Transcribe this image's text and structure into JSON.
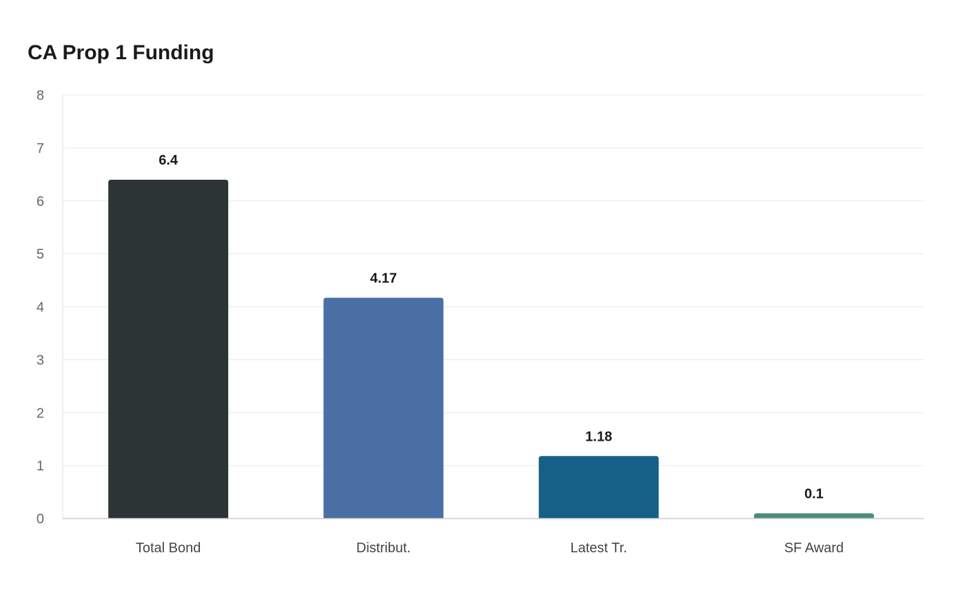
{
  "chart_data": {
    "type": "bar",
    "title": "CA Prop 1 Funding",
    "xlabel": "",
    "ylabel": "",
    "categories": [
      "Total Bond",
      "Distribut.",
      "Latest Tr.",
      "SF Award"
    ],
    "values": [
      6.4,
      4.17,
      1.18,
      0.1
    ],
    "value_labels": [
      "6.4",
      "4.17",
      "1.18",
      "0.1"
    ],
    "colors": [
      "#2d3436",
      "#4a6fa5",
      "#166088",
      "#4a8c7a"
    ],
    "ylim": [
      0,
      8
    ],
    "yticks": [
      0,
      1,
      2,
      3,
      4,
      5,
      6,
      7,
      8
    ],
    "grid": true,
    "legend": "none"
  }
}
